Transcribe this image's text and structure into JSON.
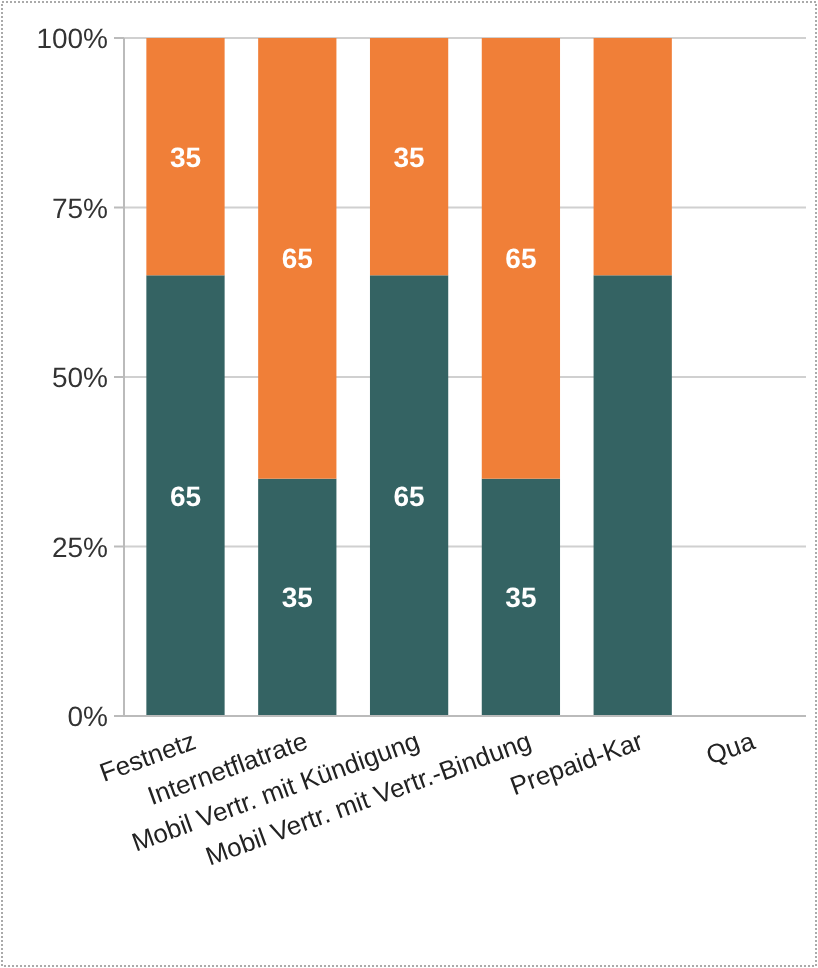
{
  "chart_data": {
    "type": "bar",
    "stacked": true,
    "categories": [
      "Festnetz",
      "Internetflatrate",
      "Mobil Vertr. mit Kündigung",
      "Mobil Vertr. mit Vertr.-Bindung",
      "Prepaid-Kar",
      "Qua"
    ],
    "series": [
      {
        "color": "#346363",
        "values": [
          65,
          35,
          65,
          35,
          65,
          null
        ],
        "value_labels": [
          "65",
          "35",
          "65",
          "35",
          null,
          null
        ]
      },
      {
        "color": "#f07f38",
        "values": [
          35,
          65,
          35,
          65,
          35,
          null
        ],
        "value_labels": [
          "35",
          "65",
          "35",
          "65",
          null,
          null
        ]
      }
    ],
    "ylim": [
      0,
      100
    ],
    "yticks": [
      {
        "value": 0,
        "label": "0%"
      },
      {
        "value": 25,
        "label": "25%"
      },
      {
        "value": 50,
        "label": "50%"
      },
      {
        "value": 75,
        "label": "75%"
      },
      {
        "value": 100,
        "label": "100%"
      }
    ],
    "grid": "y"
  }
}
